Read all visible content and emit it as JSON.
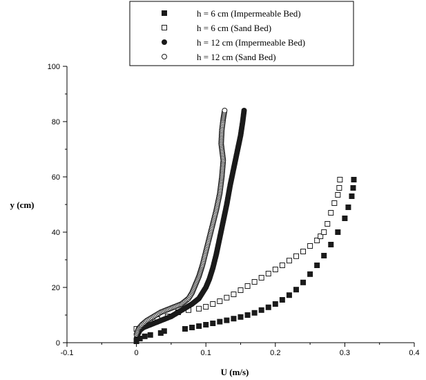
{
  "chart_data": {
    "type": "scatter",
    "title": "",
    "xlabel": "U (m/s)",
    "ylabel": "y (cm)",
    "xlim": [
      -0.1,
      0.4
    ],
    "ylim": [
      0,
      100
    ],
    "xticks": [
      "-0.1",
      "0",
      "0.1",
      "0.2",
      "0.3",
      "0.4"
    ],
    "yticks": [
      "0",
      "20",
      "40",
      "60",
      "80",
      "100"
    ],
    "grid": false,
    "legend_position": "top-center",
    "series": [
      {
        "name": "h = 6 cm (Impermeable Bed)",
        "marker": "filled-square",
        "color": "#1a1a1a",
        "points": [
          [
            0.0,
            0.5
          ],
          [
            0.005,
            1.5
          ],
          [
            0.012,
            2.3
          ],
          [
            0.02,
            2.8
          ],
          [
            0.035,
            3.5
          ],
          [
            0.04,
            4.2
          ],
          [
            0.07,
            5.0
          ],
          [
            0.08,
            5.5
          ],
          [
            0.09,
            6.0
          ],
          [
            0.1,
            6.5
          ],
          [
            0.11,
            7.0
          ],
          [
            0.12,
            7.6
          ],
          [
            0.13,
            8.1
          ],
          [
            0.14,
            8.7
          ],
          [
            0.15,
            9.3
          ],
          [
            0.16,
            10.0
          ],
          [
            0.17,
            10.8
          ],
          [
            0.18,
            11.8
          ],
          [
            0.19,
            12.8
          ],
          [
            0.2,
            14.0
          ],
          [
            0.21,
            15.5
          ],
          [
            0.22,
            17.2
          ],
          [
            0.23,
            19.2
          ],
          [
            0.24,
            21.8
          ],
          [
            0.25,
            24.8
          ],
          [
            0.26,
            28.0
          ],
          [
            0.27,
            31.5
          ],
          [
            0.28,
            35.5
          ],
          [
            0.29,
            40.0
          ],
          [
            0.3,
            45.0
          ],
          [
            0.305,
            49.0
          ],
          [
            0.31,
            53.0
          ],
          [
            0.312,
            56.0
          ],
          [
            0.313,
            59.0
          ]
        ]
      },
      {
        "name": "h = 6 cm (Sand Bed)",
        "marker": "open-square",
        "color": "#1a1a1a",
        "points": [
          [
            0.0,
            5.0
          ],
          [
            0.01,
            6.5
          ],
          [
            0.02,
            7.5
          ],
          [
            0.03,
            8.5
          ],
          [
            0.045,
            9.5
          ],
          [
            0.06,
            11.0
          ],
          [
            0.075,
            11.8
          ],
          [
            0.09,
            12.3
          ],
          [
            0.1,
            13.0
          ],
          [
            0.11,
            14.0
          ],
          [
            0.12,
            15.0
          ],
          [
            0.13,
            16.3
          ],
          [
            0.14,
            17.5
          ],
          [
            0.15,
            19.0
          ],
          [
            0.16,
            20.5
          ],
          [
            0.17,
            22.0
          ],
          [
            0.18,
            23.5
          ],
          [
            0.19,
            25.0
          ],
          [
            0.2,
            26.5
          ],
          [
            0.21,
            28.0
          ],
          [
            0.22,
            29.7
          ],
          [
            0.23,
            31.3
          ],
          [
            0.24,
            33.0
          ],
          [
            0.25,
            35.0
          ],
          [
            0.26,
            37.0
          ],
          [
            0.265,
            38.5
          ],
          [
            0.27,
            40.0
          ],
          [
            0.275,
            43.0
          ],
          [
            0.28,
            47.0
          ],
          [
            0.285,
            50.5
          ],
          [
            0.29,
            53.5
          ],
          [
            0.292,
            56.0
          ],
          [
            0.293,
            59.0
          ]
        ]
      },
      {
        "name": "h = 12 cm (Impermeable Bed)",
        "marker": "filled-circle",
        "color": "#1a1a1a",
        "points": [
          [
            0.0,
            1.5
          ],
          [
            0.002,
            3.0
          ],
          [
            0.005,
            4.5
          ],
          [
            0.01,
            5.5
          ],
          [
            0.02,
            6.5
          ],
          [
            0.03,
            7.5
          ],
          [
            0.04,
            8.5
          ],
          [
            0.05,
            9.5
          ],
          [
            0.06,
            11.0
          ],
          [
            0.07,
            12.5
          ],
          [
            0.08,
            14.0
          ],
          [
            0.09,
            16.0
          ],
          [
            0.095,
            18.0
          ],
          [
            0.1,
            20.0
          ],
          [
            0.105,
            23.0
          ],
          [
            0.11,
            27.0
          ],
          [
            0.115,
            32.0
          ],
          [
            0.12,
            38.0
          ],
          [
            0.125,
            44.0
          ],
          [
            0.13,
            50.0
          ],
          [
            0.135,
            57.0
          ],
          [
            0.14,
            63.0
          ],
          [
            0.145,
            69.0
          ],
          [
            0.15,
            75.0
          ],
          [
            0.153,
            80.0
          ],
          [
            0.155,
            84.0
          ]
        ]
      },
      {
        "name": "h = 12 cm (Sand Bed)",
        "marker": "open-circle",
        "color": "#1a1a1a",
        "points": [
          [
            0.0,
            3.0
          ],
          [
            0.003,
            5.0
          ],
          [
            0.008,
            6.5
          ],
          [
            0.015,
            8.0
          ],
          [
            0.025,
            9.5
          ],
          [
            0.035,
            11.0
          ],
          [
            0.045,
            12.0
          ],
          [
            0.055,
            13.0
          ],
          [
            0.065,
            14.0
          ],
          [
            0.075,
            16.0
          ],
          [
            0.08,
            18.0
          ],
          [
            0.085,
            21.0
          ],
          [
            0.09,
            24.0
          ],
          [
            0.095,
            28.0
          ],
          [
            0.1,
            33.0
          ],
          [
            0.105,
            38.0
          ],
          [
            0.11,
            43.0
          ],
          [
            0.115,
            48.0
          ],
          [
            0.12,
            54.0
          ],
          [
            0.123,
            60.0
          ],
          [
            0.125,
            66.0
          ],
          [
            0.122,
            72.0
          ],
          [
            0.123,
            77.0
          ],
          [
            0.125,
            81.0
          ],
          [
            0.127,
            84.0
          ]
        ]
      }
    ]
  }
}
